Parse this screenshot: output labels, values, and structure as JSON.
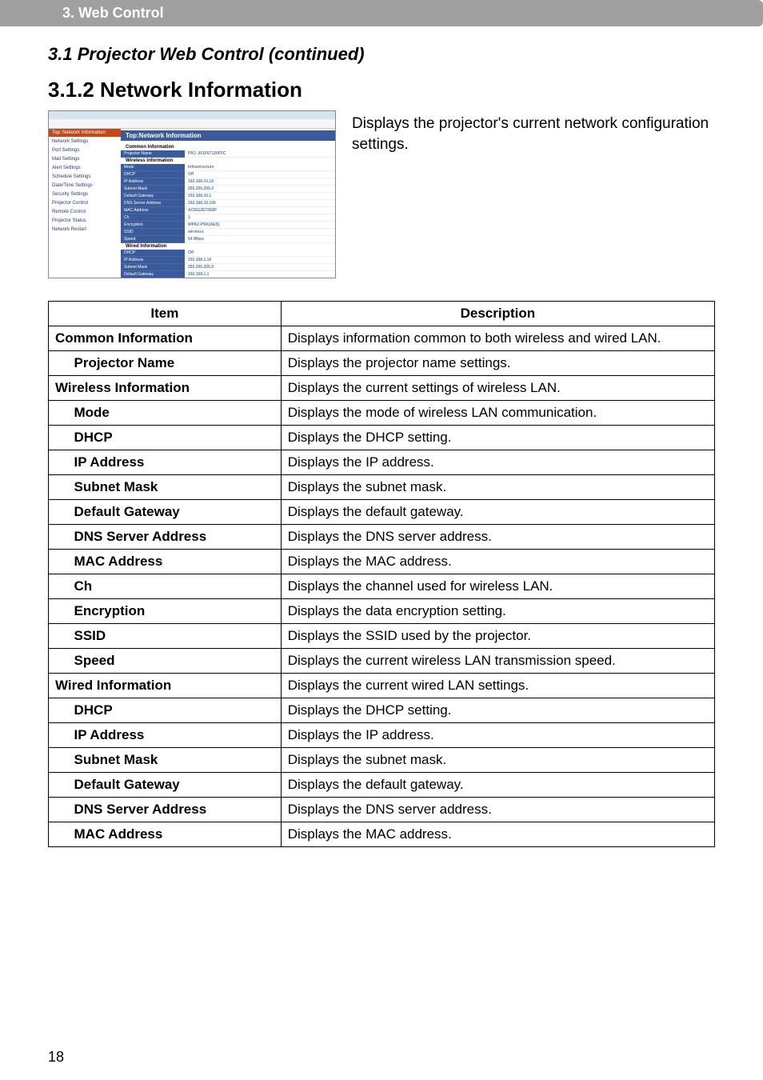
{
  "section_bar": "3. Web Control",
  "heading_31": "3.1 Projector Web Control (continued)",
  "heading_312": "3.1.2 Network Information",
  "intro": "Displays the projector's current network configuration settings.",
  "page_number": "18",
  "screenshot": {
    "title_heading": "Top:Network Information",
    "sidebar": [
      "Top:\nNetwork Information",
      "Network Settings",
      "Port Settings",
      "Mail Settings",
      "Alert Settings",
      "Schedule Settings",
      "Date/Time Settings",
      "Security Settings",
      "Projector Control",
      "Remote Control",
      "Projector Status",
      "Network Restart"
    ],
    "common_label": "Common Information",
    "common_rows": [
      {
        "l": "Projector Name",
        "r": "PRJ_001F67120FFC"
      }
    ],
    "wireless_label": "Wireless Information",
    "wireless_rows": [
      {
        "l": "Mode",
        "r": "Infrastructure"
      },
      {
        "l": "DHCP",
        "r": "Off"
      },
      {
        "l": "IP Address",
        "r": "192.168.10.10"
      },
      {
        "l": "Subnet Mask",
        "r": "255.255.255.0"
      },
      {
        "l": "Default Gateway",
        "r": "192.168.10.1"
      },
      {
        "l": "DNS Server Address",
        "r": "192.168.10.100"
      },
      {
        "l": "MAC Address",
        "r": "AC8112E72E8F"
      },
      {
        "l": "Ch",
        "r": "1"
      },
      {
        "l": "Encryption",
        "r": "WPA2-PSK(AES)"
      },
      {
        "l": "SSID",
        "r": "wireless"
      },
      {
        "l": "Speed",
        "r": "54 Mbps"
      }
    ],
    "wired_label": "Wired Information",
    "wired_rows": [
      {
        "l": "DHCP",
        "r": "Off"
      },
      {
        "l": "IP Address",
        "r": "192.168.1.10"
      },
      {
        "l": "Subnet Mask",
        "r": "255.255.255.0"
      },
      {
        "l": "Default Gateway",
        "r": "192.168.1.1"
      }
    ]
  },
  "table": {
    "headers": {
      "item": "Item",
      "desc": "Description"
    },
    "rows": [
      {
        "type": "full",
        "item": "Common Information",
        "desc": "Displays information common to both wireless and wired LAN."
      },
      {
        "type": "sub",
        "item": "Projector Name",
        "desc": "Displays the projector name settings."
      },
      {
        "type": "full",
        "item": "Wireless Information",
        "desc": "Displays the current settings of wireless LAN."
      },
      {
        "type": "sub",
        "item": "Mode",
        "desc": "Displays the mode of wireless LAN communication."
      },
      {
        "type": "sub",
        "item": "DHCP",
        "desc": "Displays the DHCP setting."
      },
      {
        "type": "sub",
        "item": "IP Address",
        "desc": "Displays the IP address."
      },
      {
        "type": "sub",
        "item": "Subnet Mask",
        "desc": "Displays the subnet mask."
      },
      {
        "type": "sub",
        "item": "Default Gateway",
        "desc": "Displays the default gateway."
      },
      {
        "type": "sub",
        "item": "DNS Server Address",
        "desc": "Displays the DNS server address."
      },
      {
        "type": "sub",
        "item": "MAC Address",
        "desc": "Displays the MAC address."
      },
      {
        "type": "sub",
        "item": "Ch",
        "desc": "Displays the channel used for wireless LAN."
      },
      {
        "type": "sub",
        "item": "Encryption",
        "desc": "Displays the data encryption setting."
      },
      {
        "type": "sub",
        "item": "SSID",
        "desc": "Displays the SSID used by the projector."
      },
      {
        "type": "sub",
        "item": "Speed",
        "desc": "Displays the current wireless LAN transmission speed."
      },
      {
        "type": "full",
        "item": "Wired Information",
        "desc": "Displays the current wired LAN settings."
      },
      {
        "type": "sub",
        "item": "DHCP",
        "desc": "Displays the DHCP setting."
      },
      {
        "type": "sub",
        "item": "IP Address",
        "desc": "Displays the IP address."
      },
      {
        "type": "sub",
        "item": "Subnet Mask",
        "desc": "Displays the subnet mask."
      },
      {
        "type": "sub",
        "item": "Default Gateway",
        "desc": "Displays the default gateway."
      },
      {
        "type": "sub",
        "item": "DNS Server Address",
        "desc": "Displays the DNS server address."
      },
      {
        "type": "sub",
        "item": "MAC Address",
        "desc": "Displays the MAC address."
      }
    ]
  }
}
